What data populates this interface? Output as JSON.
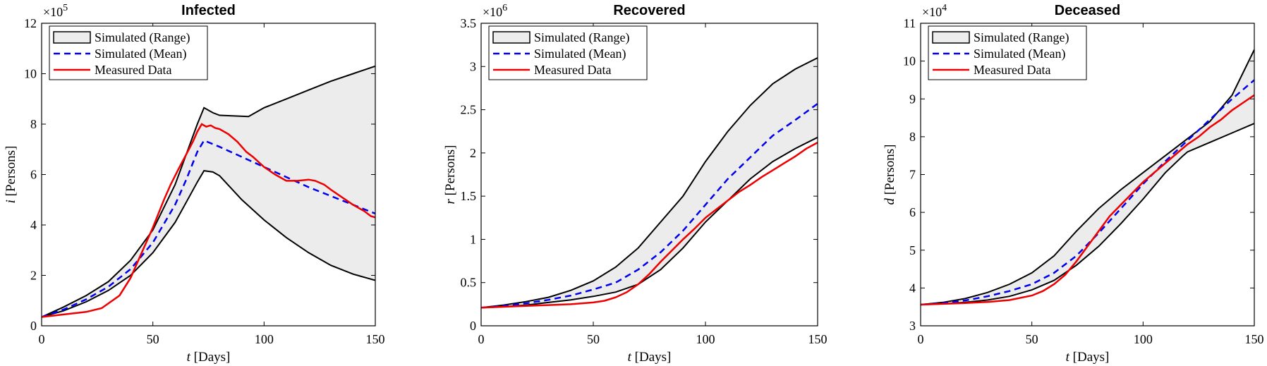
{
  "chart_data": [
    {
      "type": "line",
      "title": "Infected",
      "xlabel": {
        "var": "t",
        "rest": " [Days]"
      },
      "ylabel": {
        "var": "i",
        "rest": " [Persons]"
      },
      "exponent": {
        "base": "×10",
        "power": "5"
      },
      "xlim": [
        0,
        150
      ],
      "ylim": [
        0,
        12
      ],
      "xticks": [
        0,
        50,
        100,
        150
      ],
      "yticks": [
        0,
        2,
        4,
        6,
        8,
        10,
        12
      ],
      "legend": {
        "placement": "top-left",
        "entries": [
          "Simulated (Range)",
          "Simulated (Mean)",
          "Measured Data"
        ]
      },
      "series": [
        {
          "name": "Simulated (Range) upper",
          "x": [
            0,
            10,
            20,
            30,
            40,
            50,
            60,
            65,
            70,
            73,
            77,
            80,
            93,
            100,
            110,
            120,
            130,
            140,
            150
          ],
          "y": [
            0.35,
            0.75,
            1.2,
            1.75,
            2.6,
            3.8,
            5.6,
            6.8,
            8.0,
            8.65,
            8.45,
            8.35,
            8.3,
            8.65,
            9.0,
            9.35,
            9.7,
            10.0,
            10.3
          ]
        },
        {
          "name": "Simulated (Range) lower",
          "x": [
            0,
            10,
            20,
            30,
            40,
            50,
            60,
            65,
            70,
            73,
            77,
            80,
            90,
            100,
            110,
            120,
            130,
            140,
            150
          ],
          "y": [
            0.35,
            0.6,
            0.95,
            1.4,
            2.0,
            2.9,
            4.1,
            4.9,
            5.7,
            6.15,
            6.1,
            5.95,
            5.0,
            4.2,
            3.5,
            2.9,
            2.4,
            2.05,
            1.8
          ]
        },
        {
          "name": "Simulated (Mean)",
          "x": [
            0,
            10,
            20,
            30,
            40,
            50,
            60,
            65,
            70,
            73,
            80,
            90,
            100,
            110,
            120,
            130,
            140,
            150
          ],
          "y": [
            0.35,
            0.65,
            1.05,
            1.55,
            2.25,
            3.3,
            4.8,
            5.8,
            6.9,
            7.35,
            7.1,
            6.7,
            6.3,
            5.9,
            5.5,
            5.15,
            4.8,
            4.45
          ]
        },
        {
          "name": "Measured Data",
          "x": [
            0,
            10,
            20,
            27,
            35,
            40,
            45,
            50,
            55,
            58,
            62,
            65,
            68,
            70,
            72,
            74,
            76,
            78,
            80,
            84,
            88,
            92,
            95,
            100,
            105,
            110,
            115,
            120,
            123,
            127,
            130,
            135,
            140,
            145,
            148,
            150
          ],
          "y": [
            0.35,
            0.45,
            0.55,
            0.7,
            1.2,
            1.9,
            2.9,
            3.9,
            5.0,
            5.6,
            6.3,
            6.8,
            7.3,
            7.7,
            8.0,
            7.9,
            7.95,
            7.85,
            7.8,
            7.6,
            7.3,
            6.9,
            6.7,
            6.3,
            6.0,
            5.75,
            5.75,
            5.8,
            5.75,
            5.6,
            5.4,
            5.1,
            4.8,
            4.55,
            4.35,
            4.3
          ]
        }
      ]
    },
    {
      "type": "line",
      "title": "Recovered",
      "xlabel": {
        "var": "t",
        "rest": " [Days]"
      },
      "ylabel": {
        "var": "r",
        "rest": " [Persons]"
      },
      "exponent": {
        "base": "×10",
        "power": "6"
      },
      "xlim": [
        0,
        150
      ],
      "ylim": [
        0,
        3.5
      ],
      "xticks": [
        0,
        50,
        100,
        150
      ],
      "yticks": [
        0,
        0.5,
        1,
        1.5,
        2,
        2.5,
        3,
        3.5
      ],
      "legend": {
        "placement": "top-left",
        "entries": [
          "Simulated (Range)",
          "Simulated (Mean)",
          "Measured Data"
        ]
      },
      "series": [
        {
          "name": "Simulated (Range) upper",
          "x": [
            0,
            10,
            20,
            30,
            40,
            50,
            60,
            70,
            80,
            90,
            100,
            110,
            120,
            130,
            140,
            150
          ],
          "y": [
            0.21,
            0.24,
            0.28,
            0.33,
            0.41,
            0.52,
            0.68,
            0.9,
            1.2,
            1.5,
            1.9,
            2.25,
            2.55,
            2.8,
            2.97,
            3.1
          ]
        },
        {
          "name": "Simulated (Range) lower",
          "x": [
            0,
            10,
            20,
            30,
            40,
            50,
            60,
            70,
            80,
            90,
            100,
            110,
            120,
            130,
            140,
            150
          ],
          "y": [
            0.21,
            0.22,
            0.24,
            0.27,
            0.3,
            0.34,
            0.39,
            0.48,
            0.65,
            0.9,
            1.2,
            1.45,
            1.7,
            1.9,
            2.05,
            2.18
          ]
        },
        {
          "name": "Simulated (Mean)",
          "x": [
            0,
            10,
            20,
            30,
            40,
            50,
            60,
            70,
            80,
            90,
            100,
            110,
            120,
            130,
            140,
            150
          ],
          "y": [
            0.21,
            0.23,
            0.26,
            0.3,
            0.35,
            0.42,
            0.5,
            0.65,
            0.85,
            1.1,
            1.4,
            1.7,
            1.95,
            2.2,
            2.38,
            2.57
          ]
        },
        {
          "name": "Measured Data",
          "x": [
            0,
            10,
            20,
            30,
            40,
            50,
            55,
            60,
            65,
            70,
            75,
            80,
            85,
            90,
            95,
            100,
            105,
            110,
            115,
            120,
            125,
            130,
            135,
            140,
            145,
            150
          ],
          "y": [
            0.21,
            0.22,
            0.23,
            0.24,
            0.25,
            0.27,
            0.29,
            0.33,
            0.39,
            0.48,
            0.6,
            0.74,
            0.87,
            1.0,
            1.12,
            1.25,
            1.35,
            1.45,
            1.55,
            1.63,
            1.72,
            1.8,
            1.88,
            1.96,
            2.05,
            2.12
          ]
        }
      ]
    },
    {
      "type": "line",
      "title": "Deceased",
      "xlabel": {
        "var": "t",
        "rest": " [Days]"
      },
      "ylabel": {
        "var": "d",
        "rest": " [Persons]"
      },
      "exponent": {
        "base": "×10",
        "power": "4"
      },
      "xlim": [
        0,
        150
      ],
      "ylim": [
        3,
        11
      ],
      "xticks": [
        0,
        50,
        100,
        150
      ],
      "yticks": [
        3,
        4,
        5,
        6,
        7,
        8,
        9,
        10,
        11
      ],
      "legend": {
        "placement": "top-left",
        "entries": [
          "Simulated (Range)",
          "Simulated (Mean)",
          "Measured Data"
        ]
      },
      "series": [
        {
          "name": "Simulated (Range) upper",
          "x": [
            0,
            10,
            20,
            30,
            40,
            50,
            60,
            70,
            80,
            90,
            100,
            110,
            120,
            130,
            140,
            150
          ],
          "y": [
            3.56,
            3.62,
            3.72,
            3.88,
            4.1,
            4.4,
            4.85,
            5.5,
            6.1,
            6.6,
            7.05,
            7.5,
            7.95,
            8.4,
            9.1,
            10.3
          ]
        },
        {
          "name": "Simulated (Range) lower",
          "x": [
            0,
            10,
            20,
            30,
            40,
            50,
            60,
            70,
            80,
            90,
            100,
            110,
            118,
            120,
            130,
            140,
            150
          ],
          "y": [
            3.56,
            3.58,
            3.62,
            3.68,
            3.78,
            3.95,
            4.2,
            4.6,
            5.1,
            5.7,
            6.35,
            7.05,
            7.5,
            7.6,
            7.85,
            8.1,
            8.35
          ]
        },
        {
          "name": "Simulated (Mean)",
          "x": [
            0,
            10,
            20,
            30,
            40,
            50,
            60,
            70,
            80,
            90,
            100,
            110,
            120,
            130,
            140,
            150
          ],
          "y": [
            3.56,
            3.6,
            3.67,
            3.78,
            3.92,
            4.1,
            4.4,
            4.85,
            5.45,
            6.1,
            6.75,
            7.35,
            7.9,
            8.45,
            9.0,
            9.5
          ]
        },
        {
          "name": "Measured Data",
          "x": [
            0,
            10,
            20,
            30,
            40,
            50,
            55,
            60,
            65,
            70,
            75,
            80,
            85,
            90,
            95,
            100,
            105,
            110,
            115,
            120,
            125,
            130,
            135,
            140,
            145,
            150
          ],
          "y": [
            3.56,
            3.58,
            3.6,
            3.63,
            3.68,
            3.8,
            3.92,
            4.1,
            4.35,
            4.7,
            5.1,
            5.5,
            5.9,
            6.2,
            6.5,
            6.8,
            7.05,
            7.3,
            7.55,
            7.8,
            8.0,
            8.25,
            8.45,
            8.7,
            8.9,
            9.1
          ]
        }
      ]
    }
  ]
}
